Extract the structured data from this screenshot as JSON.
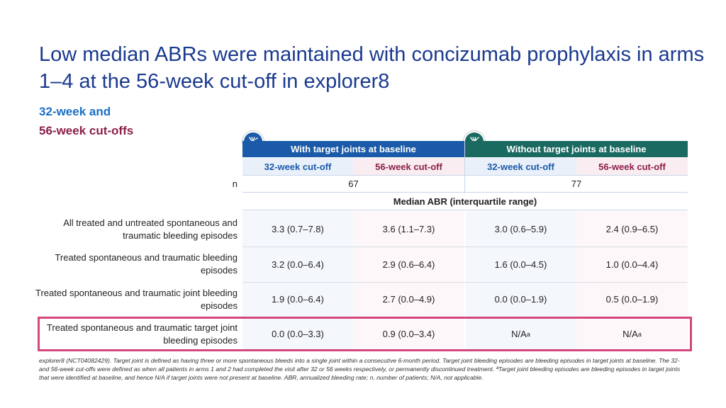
{
  "title": "Low median ABRs were maintained with concizumab prophylaxis in arms 1–4 at the 56-week cut-off in explorer8",
  "subtitle_32": "32-week and",
  "subtitle_56": "56-week cut-offs",
  "headers": {
    "with_target": "With target joints at baseline",
    "without_target": "Without target joints at baseline",
    "cut32": "32-week cut-off",
    "cut56": "56-week cut-off"
  },
  "n_label": "n",
  "n_with": "67",
  "n_without": "77",
  "median_label": "Median ABR (interquartile range)",
  "rows": [
    {
      "label": "All treated and untreated spontaneous and traumatic bleeding episodes",
      "v": [
        "3.3 (0.7–7.8)",
        "3.6 (1.1–7.3)",
        "3.0 (0.6–5.9)",
        "2.4 (0.9–6.5)"
      ]
    },
    {
      "label": "Treated spontaneous and traumatic bleeding episodes",
      "v": [
        "3.2 (0.0–6.4)",
        "2.9 (0.6–6.4)",
        "1.6 (0.0–4.5)",
        "1.0 (0.0–4.4)"
      ]
    },
    {
      "label": "Treated spontaneous and traumatic joint bleeding episodes",
      "v": [
        "1.9 (0.0–6.4)",
        "2.7 (0.0–4.9)",
        "0.0 (0.0–1.9)",
        "0.5 (0.0–1.9)"
      ]
    },
    {
      "label": "Treated spontaneous and traumatic target joint bleeding episodes",
      "v": [
        "0.0 (0.0–3.3)",
        "0.9 (0.0–3.4)",
        "N/A",
        "N/A"
      ]
    }
  ],
  "sup_a": "a",
  "footnote": "explorer8 (NCT04082429). Target joint is defined as having three or more spontaneous bleeds into a single joint within a consecutive 6-month period. Target joint bleeding episodes are bleeding episodes in target joints at baseline. The 32- and 56-week cut-offs were defined as when all patients in arms 1 and 2 had completed the visit after 32 or 56 weeks respectively, or permanently discontinued treatment. ªTarget joint bleeding episodes are bleeding episodes in target joints that were identified at baseline, and hence N/A if target joints were not present at baseline. ABR, annualized bleeding rate; n, number of patients; N/A, not applicable.",
  "colors": {
    "blue": "#1a5aa8",
    "teal": "#1b6a62",
    "pink": "#8b1f4a",
    "highlight": "#d4477c"
  }
}
